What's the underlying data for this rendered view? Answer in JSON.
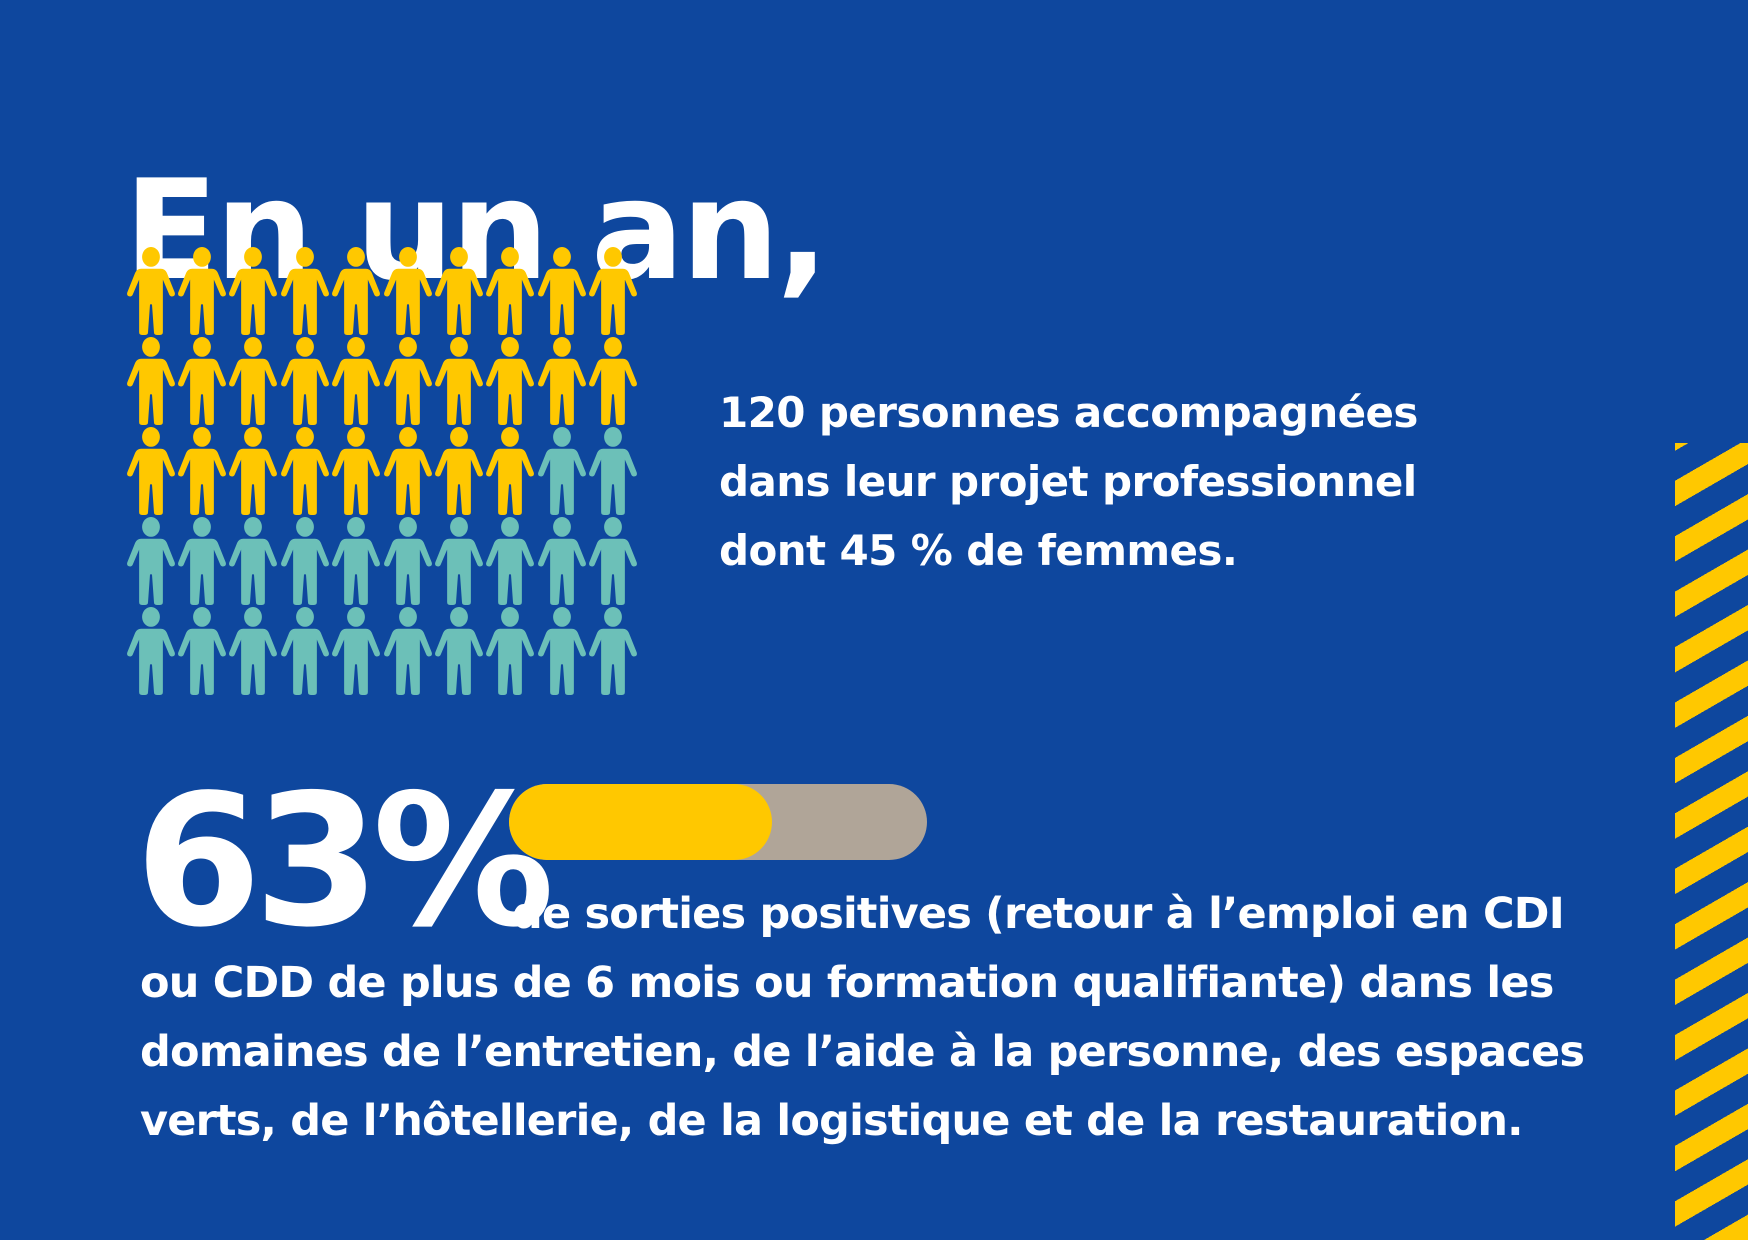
{
  "colors": {
    "background": "#0E479E",
    "accent_yellow": "#FFC800",
    "accent_teal": "#6CC0B8",
    "bar_track": "#B0A598",
    "text": "#FFFFFF"
  },
  "header": {
    "title": "En un an,"
  },
  "people_stat": {
    "icon": "person-icon",
    "total_icons": 50,
    "columns": 10,
    "rows": 5,
    "yellow_count": 28,
    "teal_count": 22,
    "lines": [
      "120 personnes accompagnées",
      "dans leur projet professionnel",
      "dont 45 % de femmes."
    ]
  },
  "outcome_stat": {
    "value": "63%",
    "progress_percent": 63,
    "lines": [
      "de sorties positives (retour à l’emploi en CDI",
      "ou CDD de plus de 6 mois ou formation qualifiante) dans les",
      "domaines de l’entretien, de l’aide à la personne, des espaces",
      "verts, de l’hôtellerie, de la logistique et de la restauration."
    ]
  },
  "decoration": {
    "right_edge": "diagonal-yellow-stripes"
  },
  "chart_data": [
    {
      "type": "pictogram",
      "title": "120 personnes accompagnées dans leur projet professionnel dont 45 % de femmes.",
      "categories": [
        "yellow",
        "teal"
      ],
      "values": [
        28,
        22
      ],
      "total": 50,
      "grid": {
        "columns": 10,
        "rows": 5
      }
    },
    {
      "type": "bar",
      "title": "63% de sorties positives",
      "categories": [
        "sorties positives"
      ],
      "values": [
        63
      ],
      "ylim": [
        0,
        100
      ]
    }
  ]
}
